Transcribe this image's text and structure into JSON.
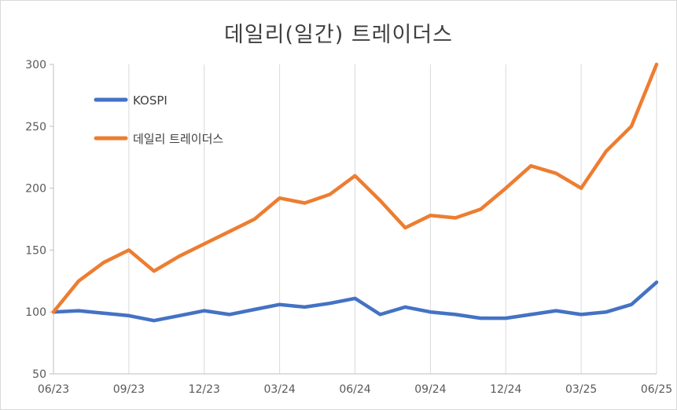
{
  "chart_data": {
    "type": "line",
    "title": "데일리(일간) 트레이더스",
    "x_tick_labels": [
      "06/23",
      "09/23",
      "12/23",
      "03/24",
      "06/24",
      "09/24",
      "12/24",
      "03/25",
      "06/25"
    ],
    "x": [
      "06/23",
      "07/23",
      "08/23",
      "09/23",
      "10/23",
      "11/23",
      "12/23",
      "01/24",
      "02/24",
      "03/24",
      "04/24",
      "05/24",
      "06/24",
      "07/24",
      "08/24",
      "09/24",
      "10/24",
      "11/24",
      "12/24",
      "01/25",
      "02/25",
      "03/25",
      "04/25",
      "05/25",
      "06/25"
    ],
    "xlim": [
      "06/23",
      "06/25"
    ],
    "ylim": [
      50,
      300
    ],
    "y_ticks": [
      50,
      100,
      150,
      200,
      250,
      300
    ],
    "grid": "vertical",
    "legend_position": "top-left",
    "series": [
      {
        "name": "KOSPI",
        "color": "#4472C4",
        "values": [
          100,
          101,
          99,
          97,
          93,
          97,
          101,
          98,
          102,
          106,
          104,
          107,
          111,
          98,
          104,
          100,
          98,
          95,
          95,
          98,
          101,
          98,
          100,
          106,
          124
        ]
      },
      {
        "name": "데일리 트레이더스",
        "color": "#ED7D31",
        "values": [
          100,
          125,
          140,
          150,
          133,
          145,
          155,
          165,
          175,
          192,
          188,
          195,
          210,
          190,
          168,
          178,
          176,
          183,
          200,
          218,
          212,
          200,
          230,
          250,
          300
        ]
      }
    ]
  }
}
